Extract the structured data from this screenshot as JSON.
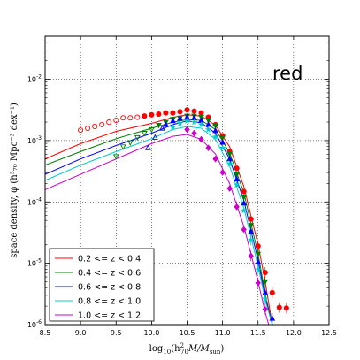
{
  "chart_data": {
    "type": "scatter",
    "annotation": "red",
    "xlabel_parts": {
      "pre": "log",
      "pre_sub": "10",
      "open": "(h",
      "h_sup": "2",
      "h_sub": "70",
      "mid": "M/M",
      "m_sub": "sun",
      "close": ")"
    },
    "ylabel": "space density, φ (h³₇₀ Mpc⁻³ dex⁻¹)",
    "xlim": [
      8.5,
      12.5
    ],
    "ylim_log10": [
      -6,
      -1.3
    ],
    "x_ticks": [
      8.5,
      9.0,
      9.5,
      10.0,
      10.5,
      11.0,
      11.5,
      12.0,
      12.5
    ],
    "x_tick_labels": [
      "8.5",
      "9.0",
      "9.5",
      "10.0",
      "10.5",
      "11.0",
      "11.5",
      "12.0",
      "12.5"
    ],
    "y_ticks_log10": [
      -6,
      -5,
      -4,
      -3,
      -2
    ],
    "y_tick_labels": [
      {
        "base": "10",
        "exp": "-6"
      },
      {
        "base": "10",
        "exp": "-5"
      },
      {
        "base": "10",
        "exp": "-4"
      },
      {
        "base": "10",
        "exp": "-3"
      },
      {
        "base": "10",
        "exp": "-2"
      }
    ],
    "grid": true,
    "legend_position": "lower-left",
    "series": [
      {
        "name": "0.2 <= z < 0.4",
        "color": "#ff0000",
        "marker": "circle",
        "open_points": [
          [
            9.0,
            -2.83
          ],
          [
            9.1,
            -2.8
          ],
          [
            9.2,
            -2.77
          ],
          [
            9.3,
            -2.74
          ],
          [
            9.4,
            -2.7
          ],
          [
            9.5,
            -2.67
          ],
          [
            9.6,
            -2.63
          ],
          [
            9.7,
            -2.63
          ],
          [
            9.8,
            -2.62
          ]
        ],
        "points": [
          [
            9.9,
            -2.6
          ],
          [
            10.0,
            -2.58
          ],
          [
            10.1,
            -2.57
          ],
          [
            10.2,
            -2.55
          ],
          [
            10.3,
            -2.55
          ],
          [
            10.4,
            -2.53
          ],
          [
            10.5,
            -2.5
          ],
          [
            10.6,
            -2.52
          ],
          [
            10.7,
            -2.55
          ],
          [
            10.8,
            -2.62
          ],
          [
            10.9,
            -2.74
          ],
          [
            11.0,
            -2.92
          ],
          [
            11.1,
            -3.18
          ],
          [
            11.2,
            -3.45
          ],
          [
            11.3,
            -3.83
          ],
          [
            11.4,
            -4.28
          ],
          [
            11.5,
            -4.72
          ],
          [
            11.6,
            -5.15
          ],
          [
            11.7,
            -5.48
          ],
          [
            11.8,
            -5.72
          ],
          [
            11.9,
            -5.73
          ]
        ],
        "fit_line": [
          [
            8.5,
            -3.3
          ],
          [
            9.0,
            -3.05
          ],
          [
            9.5,
            -2.85
          ],
          [
            10.0,
            -2.72
          ],
          [
            10.3,
            -2.62
          ],
          [
            10.5,
            -2.58
          ],
          [
            10.7,
            -2.6
          ],
          [
            10.9,
            -2.75
          ],
          [
            11.1,
            -3.1
          ],
          [
            11.3,
            -3.75
          ],
          [
            11.5,
            -4.7
          ],
          [
            11.6,
            -5.3
          ],
          [
            11.7,
            -6.0
          ]
        ],
        "extrapolation_line": [
          [
            8.5,
            -3.3
          ],
          [
            9.0,
            -3.05
          ],
          [
            9.5,
            -2.85
          ],
          [
            10.0,
            -2.72
          ]
        ]
      },
      {
        "name": "0.4 <= z < 0.6",
        "color": "#008000",
        "marker": "triangle-down",
        "open_points": [
          [
            9.5,
            -3.26
          ],
          [
            9.6,
            -3.1
          ],
          [
            9.7,
            -3.03
          ],
          [
            9.8,
            -2.95
          ],
          [
            9.9,
            -2.88
          ],
          [
            10.0,
            -2.82
          ]
        ],
        "points": [
          [
            10.1,
            -2.75
          ],
          [
            10.2,
            -2.7
          ],
          [
            10.3,
            -2.65
          ],
          [
            10.4,
            -2.63
          ],
          [
            10.5,
            -2.6
          ],
          [
            10.6,
            -2.6
          ],
          [
            10.7,
            -2.62
          ],
          [
            10.8,
            -2.67
          ],
          [
            10.9,
            -2.76
          ],
          [
            11.0,
            -2.95
          ],
          [
            11.1,
            -3.22
          ],
          [
            11.2,
            -3.55
          ],
          [
            11.3,
            -3.92
          ],
          [
            11.4,
            -4.38
          ],
          [
            11.5,
            -4.85
          ],
          [
            11.6,
            -5.3
          ]
        ],
        "fit_line": [
          [
            8.5,
            -3.4
          ],
          [
            9.0,
            -3.18
          ],
          [
            9.5,
            -2.97
          ],
          [
            10.0,
            -2.8
          ],
          [
            10.3,
            -2.7
          ],
          [
            10.5,
            -2.66
          ],
          [
            10.7,
            -2.67
          ],
          [
            10.9,
            -2.82
          ],
          [
            11.1,
            -3.2
          ],
          [
            11.3,
            -3.85
          ],
          [
            11.5,
            -4.85
          ],
          [
            11.6,
            -5.5
          ],
          [
            11.7,
            -6.0
          ]
        ],
        "extrapolation_line": [
          [
            8.5,
            -3.4
          ],
          [
            9.0,
            -3.18
          ],
          [
            9.5,
            -2.97
          ],
          [
            10.0,
            -2.8
          ]
        ]
      },
      {
        "name": "0.6 <= z < 0.8",
        "color": "#0000ff",
        "marker": "triangle-up",
        "open_points": [
          [
            9.95,
            -3.12
          ],
          [
            10.05,
            -2.95
          ],
          [
            10.15,
            -2.8
          ]
        ],
        "points": [
          [
            10.2,
            -2.74
          ],
          [
            10.3,
            -2.68
          ],
          [
            10.4,
            -2.64
          ],
          [
            10.5,
            -2.62
          ],
          [
            10.6,
            -2.63
          ],
          [
            10.7,
            -2.67
          ],
          [
            10.8,
            -2.74
          ],
          [
            10.9,
            -2.84
          ],
          [
            11.0,
            -3.03
          ],
          [
            11.1,
            -3.3
          ],
          [
            11.2,
            -3.63
          ],
          [
            11.3,
            -4.02
          ],
          [
            11.4,
            -4.48
          ],
          [
            11.5,
            -4.98
          ],
          [
            11.6,
            -5.48
          ],
          [
            11.7,
            -5.9
          ]
        ],
        "fit_line": [
          [
            8.5,
            -3.55
          ],
          [
            9.0,
            -3.3
          ],
          [
            9.5,
            -3.08
          ],
          [
            10.0,
            -2.88
          ],
          [
            10.3,
            -2.74
          ],
          [
            10.5,
            -2.68
          ],
          [
            10.7,
            -2.71
          ],
          [
            10.9,
            -2.88
          ],
          [
            11.1,
            -3.3
          ],
          [
            11.3,
            -3.98
          ],
          [
            11.5,
            -4.95
          ],
          [
            11.6,
            -5.55
          ],
          [
            11.7,
            -6.0
          ]
        ],
        "extrapolation_line": [
          [
            8.5,
            -3.55
          ],
          [
            9.0,
            -3.3
          ],
          [
            9.5,
            -3.08
          ],
          [
            10.0,
            -2.88
          ]
        ]
      },
      {
        "name": "0.8 <= z < 1.0",
        "color": "#00cccc",
        "marker": "star",
        "open_points": [],
        "points": [
          [
            10.3,
            -2.78
          ],
          [
            10.4,
            -2.72
          ],
          [
            10.5,
            -2.68
          ],
          [
            10.6,
            -2.7
          ],
          [
            10.7,
            -2.74
          ],
          [
            10.8,
            -2.82
          ],
          [
            10.9,
            -2.94
          ],
          [
            11.0,
            -3.12
          ],
          [
            11.1,
            -3.38
          ],
          [
            11.2,
            -3.72
          ],
          [
            11.3,
            -4.14
          ],
          [
            11.4,
            -4.62
          ],
          [
            11.5,
            -5.1
          ],
          [
            11.6,
            -5.58
          ]
        ],
        "fit_line": [
          [
            8.5,
            -3.65
          ],
          [
            9.0,
            -3.4
          ],
          [
            9.5,
            -3.18
          ],
          [
            10.0,
            -2.97
          ],
          [
            10.3,
            -2.82
          ],
          [
            10.5,
            -2.77
          ],
          [
            10.7,
            -2.8
          ],
          [
            10.9,
            -2.98
          ],
          [
            11.1,
            -3.42
          ],
          [
            11.3,
            -4.1
          ],
          [
            11.5,
            -5.05
          ],
          [
            11.6,
            -5.6
          ],
          [
            11.7,
            -6.0
          ]
        ],
        "extrapolation_line": [
          [
            8.5,
            -3.65
          ],
          [
            9.0,
            -3.4
          ],
          [
            9.5,
            -3.18
          ],
          [
            10.0,
            -2.97
          ]
        ]
      },
      {
        "name": "1.0 <= z < 1.2",
        "color": "#cc00cc",
        "marker": "diamond",
        "open_points": [],
        "points": [
          [
            10.5,
            -2.82
          ],
          [
            10.6,
            -2.88
          ],
          [
            10.7,
            -2.98
          ],
          [
            10.8,
            -3.12
          ],
          [
            10.9,
            -3.3
          ],
          [
            11.0,
            -3.52
          ],
          [
            11.1,
            -3.78
          ],
          [
            11.2,
            -4.08
          ],
          [
            11.3,
            -4.45
          ],
          [
            11.4,
            -4.88
          ],
          [
            11.5,
            -5.32
          ],
          [
            11.6,
            -5.75
          ]
        ],
        "fit_line": [
          [
            8.5,
            -3.8
          ],
          [
            9.0,
            -3.55
          ],
          [
            9.5,
            -3.3
          ],
          [
            10.0,
            -3.05
          ],
          [
            10.3,
            -2.93
          ],
          [
            10.5,
            -2.9
          ],
          [
            10.7,
            -2.98
          ],
          [
            10.9,
            -3.22
          ],
          [
            11.1,
            -3.7
          ],
          [
            11.3,
            -4.4
          ],
          [
            11.5,
            -5.3
          ],
          [
            11.6,
            -5.8
          ],
          [
            11.65,
            -6.0
          ]
        ],
        "extrapolation_line": [
          [
            8.5,
            -3.8
          ],
          [
            9.0,
            -3.55
          ],
          [
            9.5,
            -3.3
          ],
          [
            10.0,
            -3.05
          ]
        ]
      }
    ]
  }
}
